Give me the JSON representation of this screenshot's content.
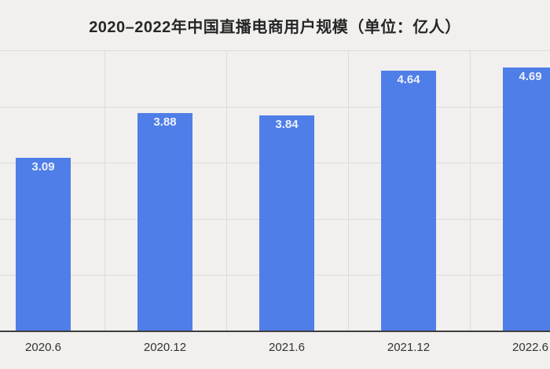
{
  "title": "2020–2022年中国直播电商用户规模（单位：亿人）",
  "colors": {
    "background": "#f1f0ee",
    "bar": "#4f7ee8",
    "gridline": "#dedcda",
    "axis_line": "#3e3e3e",
    "title_text": "#262626",
    "x_label_text": "#333333",
    "bar_label_text": "#edf1fb"
  },
  "chart_data": {
    "type": "bar",
    "title": "2020–2022年中国直播电商用户规模（单位：亿人）",
    "categories": [
      "2020.6",
      "2020.12",
      "2021.6",
      "2021.12",
      "2022.6"
    ],
    "values": [
      3.09,
      3.88,
      3.84,
      4.64,
      4.69
    ],
    "value_labels": [
      "3.09",
      "3.88",
      "3.84",
      "4.64",
      "4.69"
    ],
    "xlabel": "",
    "ylabel": "",
    "unit": "亿人",
    "ylim": [
      0,
      5
    ],
    "y_gridline_step": 1,
    "grid": true,
    "legend": false,
    "value_label_position": "inside-top",
    "notes": "leftmost category partially cropped at left edge; rightmost bar cropped at right edge"
  }
}
